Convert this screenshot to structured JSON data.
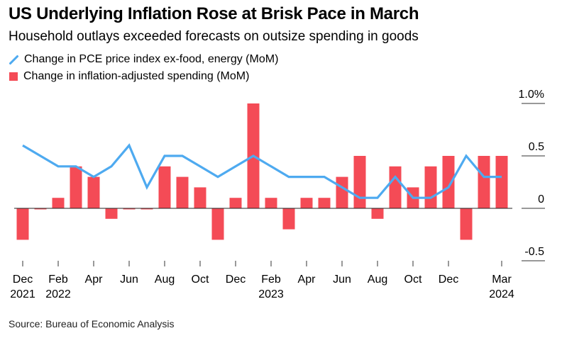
{
  "title": "US Underlying Inflation Rose at Brisk Pace in March",
  "subtitle": "Household outlays exceeded forecasts on outsize spending in goods",
  "source": "Source: Bureau of Economic Analysis",
  "colors": {
    "line": "#4eaaf0",
    "bar": "#f44b56",
    "axis": "#000000"
  },
  "chart_data": {
    "type": "bar+line",
    "title": "US Underlying Inflation Rose at Brisk Pace in March",
    "subtitle": "Household outlays exceeded forecasts on outsize spending in goods",
    "xlabel": "",
    "ylabel": "",
    "ylim": [
      -0.5,
      1.0
    ],
    "yticks": [
      {
        "value": 1.0,
        "label": "1.0%"
      },
      {
        "value": 0.5,
        "label": "0.5"
      },
      {
        "value": 0,
        "label": "0"
      },
      {
        "value": -0.5,
        "label": "-0.5"
      }
    ],
    "grid": false,
    "legend_position": "top-left",
    "categories": [
      "Dec 2021",
      "Jan 2022",
      "Feb 2022",
      "Mar 2022",
      "Apr 2022",
      "May 2022",
      "Jun 2022",
      "Jul 2022",
      "Aug 2022",
      "Sep 2022",
      "Oct 2022",
      "Nov 2022",
      "Dec 2022",
      "Jan 2023",
      "Feb 2023",
      "Mar 2023",
      "Apr 2023",
      "May 2023",
      "Jun 2023",
      "Jul 2023",
      "Aug 2023",
      "Sep 2023",
      "Oct 2023",
      "Nov 2023",
      "Dec 2023",
      "Jan 2024",
      "Feb 2024",
      "Mar 2024"
    ],
    "xticks": [
      {
        "index": 0,
        "line1": "Dec",
        "line2": "2021"
      },
      {
        "index": 2,
        "line1": "Feb",
        "line2": "2022"
      },
      {
        "index": 4,
        "line1": "Apr",
        "line2": ""
      },
      {
        "index": 6,
        "line1": "Jun",
        "line2": ""
      },
      {
        "index": 8,
        "line1": "Aug",
        "line2": ""
      },
      {
        "index": 10,
        "line1": "Oct",
        "line2": ""
      },
      {
        "index": 12,
        "line1": "Dec",
        "line2": ""
      },
      {
        "index": 14,
        "line1": "Feb",
        "line2": "2023"
      },
      {
        "index": 16,
        "line1": "Apr",
        "line2": ""
      },
      {
        "index": 18,
        "line1": "Jun",
        "line2": ""
      },
      {
        "index": 20,
        "line1": "Aug",
        "line2": ""
      },
      {
        "index": 22,
        "line1": "Oct",
        "line2": ""
      },
      {
        "index": 24,
        "line1": "Dec",
        "line2": ""
      },
      {
        "index": 27,
        "line1": "Mar",
        "line2": "2024"
      }
    ],
    "series": [
      {
        "name": "Change in PCE price index ex-food, energy (MoM)",
        "type": "line",
        "values": [
          0.6,
          0.5,
          0.4,
          0.4,
          0.3,
          0.4,
          0.6,
          0.2,
          0.5,
          0.5,
          0.4,
          0.3,
          0.4,
          0.5,
          0.4,
          0.3,
          0.3,
          0.3,
          0.2,
          0.1,
          0.1,
          0.3,
          0.1,
          0.1,
          0.2,
          0.5,
          0.3,
          0.3
        ]
      },
      {
        "name": "Change in inflation-adjusted spending (MoM)",
        "type": "bar",
        "values": [
          -0.3,
          0.0,
          0.1,
          0.4,
          0.3,
          -0.1,
          0.0,
          0.0,
          0.4,
          0.3,
          0.2,
          -0.3,
          0.1,
          1.0,
          0.1,
          -0.2,
          0.1,
          0.1,
          0.3,
          0.5,
          -0.1,
          0.4,
          0.2,
          0.4,
          0.5,
          -0.3,
          0.5,
          0.5
        ]
      }
    ]
  }
}
